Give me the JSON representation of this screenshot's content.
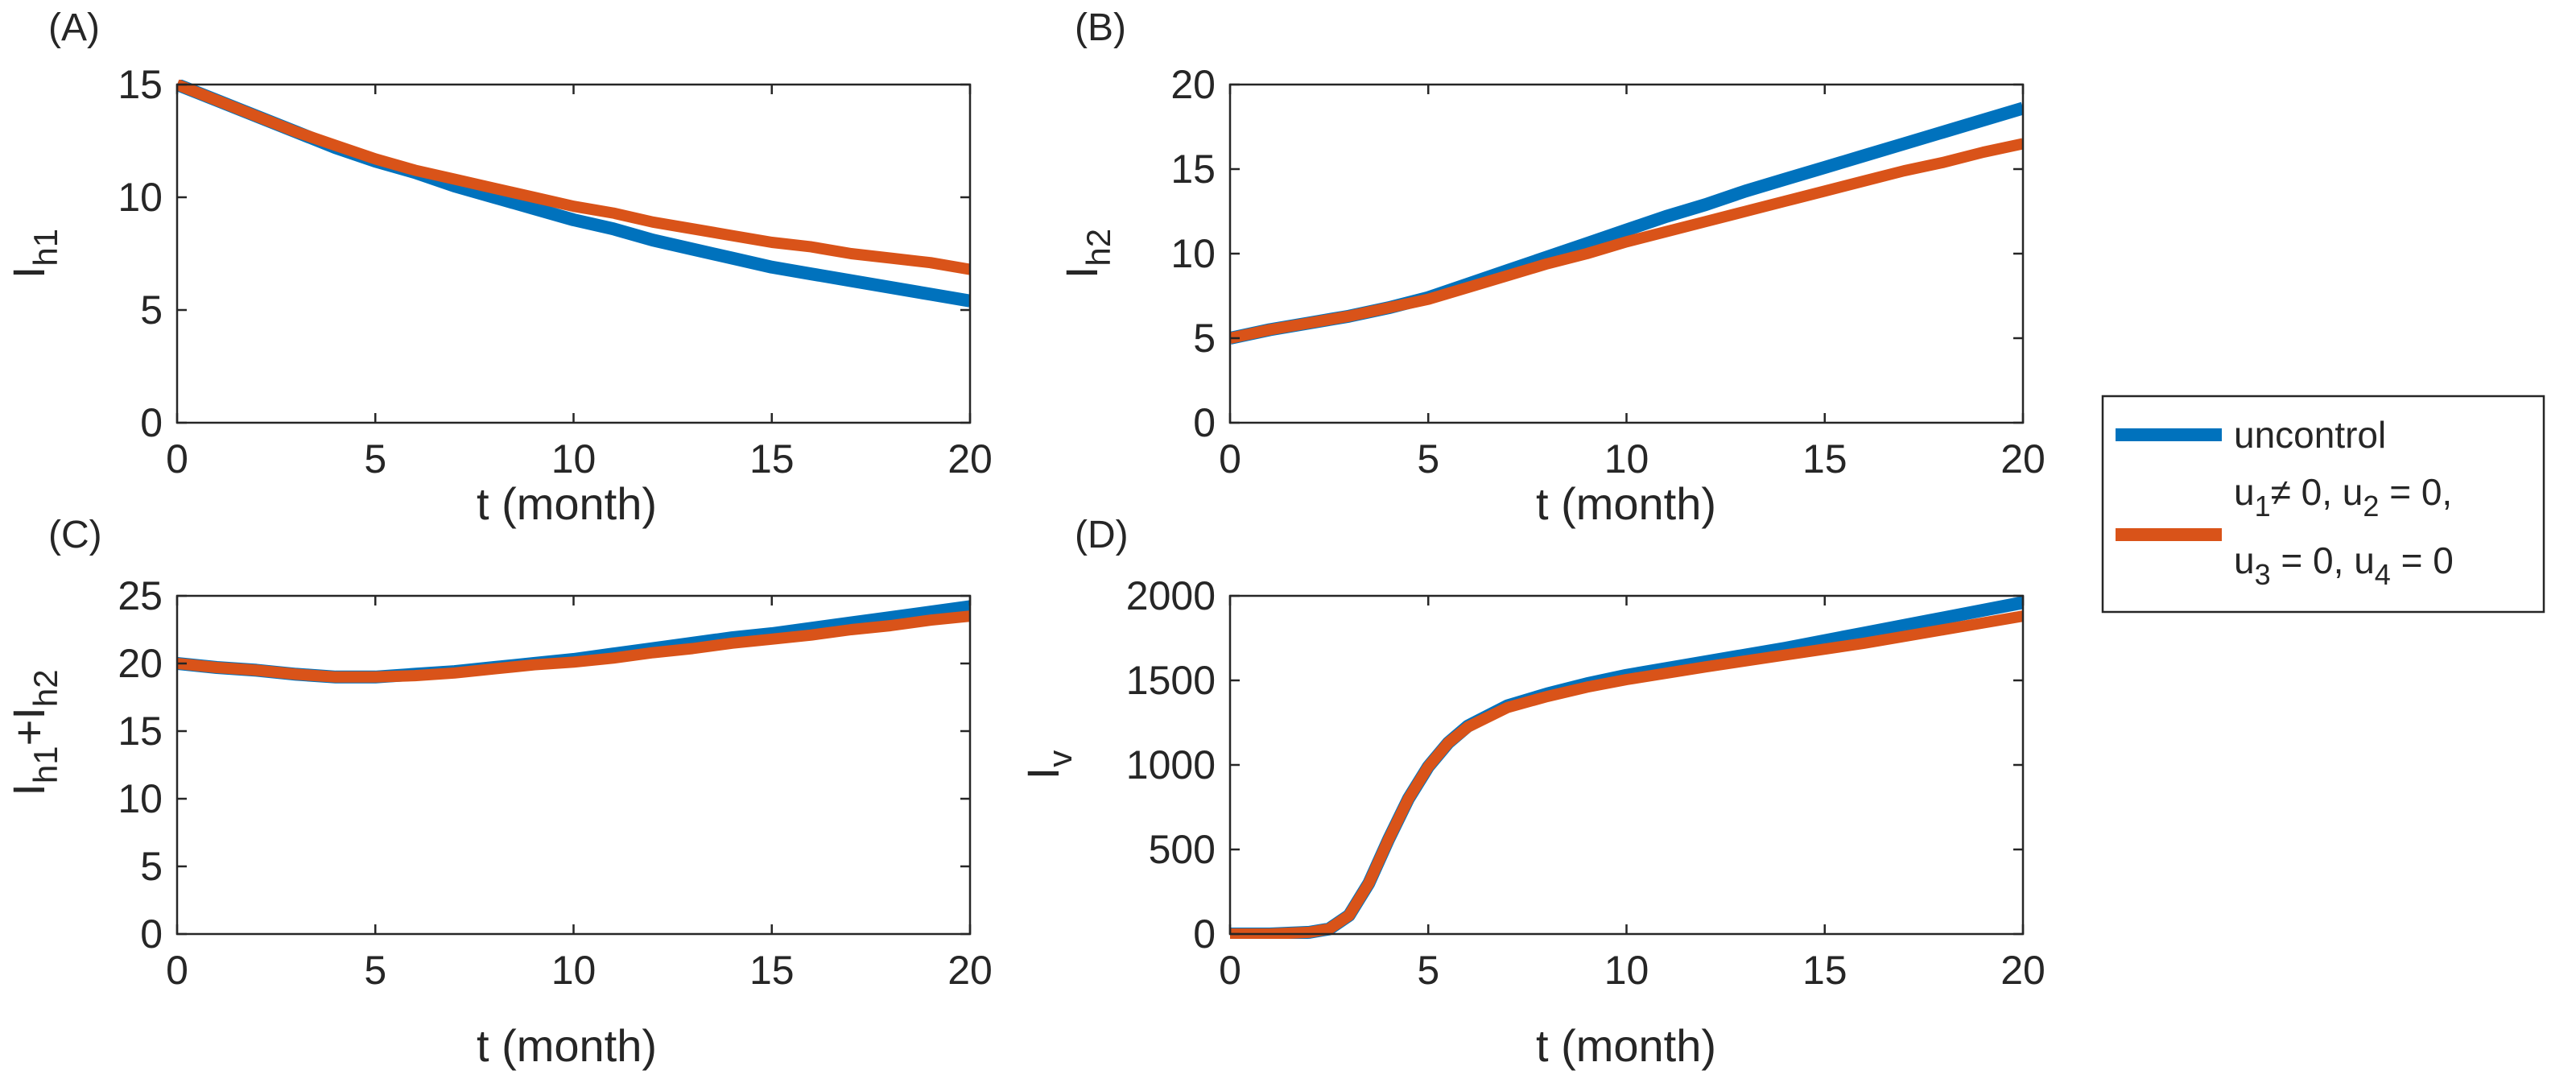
{
  "figure": {
    "legend": {
      "entries": [
        {
          "label": "uncontrol",
          "color": "#0072BD"
        },
        {
          "label": "u1≠ 0, u2 = 0, u3 = 0, u4 = 0",
          "line1": {
            "base1": "u",
            "sub1": "1",
            "rest1": "≠ 0, u",
            "sub2": "2",
            "rest2": " = 0,"
          },
          "line2": {
            "base1": "u",
            "sub1": "3",
            "rest1": " = 0, u",
            "sub2": "4",
            "rest2": " = 0"
          },
          "color": "#D95319"
        }
      ]
    }
  },
  "chart_data": [
    {
      "panel": "(A)",
      "type": "line",
      "xlabel": "t (month)",
      "ylabel": {
        "base": "I",
        "sub": "h1"
      },
      "xlim": [
        0,
        20
      ],
      "ylim": [
        0,
        15
      ],
      "xticks": [
        0,
        5,
        10,
        15,
        20
      ],
      "yticks": [
        0,
        5,
        10,
        15
      ],
      "series": [
        {
          "name": "uncontrol",
          "color": "#0072BD",
          "x": [
            0,
            1,
            2,
            3,
            4,
            5,
            6,
            7,
            8,
            9,
            10,
            11,
            12,
            13,
            14,
            15,
            16,
            17,
            18,
            19,
            20
          ],
          "y": [
            15.0,
            14.3,
            13.6,
            12.9,
            12.2,
            11.6,
            11.1,
            10.5,
            10.0,
            9.5,
            9.0,
            8.6,
            8.1,
            7.7,
            7.3,
            6.9,
            6.6,
            6.3,
            6.0,
            5.7,
            5.4
          ]
        },
        {
          "name": "u1≠ 0, u2 = 0, u3 = 0, u4 = 0",
          "color": "#D95319",
          "x": [
            0,
            1,
            2,
            3,
            4,
            5,
            6,
            7,
            8,
            9,
            10,
            11,
            12,
            13,
            14,
            15,
            16,
            17,
            18,
            19,
            20
          ],
          "y": [
            15.0,
            14.3,
            13.6,
            12.9,
            12.3,
            11.7,
            11.2,
            10.8,
            10.4,
            10.0,
            9.6,
            9.3,
            8.9,
            8.6,
            8.3,
            8.0,
            7.8,
            7.5,
            7.3,
            7.1,
            6.8
          ]
        }
      ]
    },
    {
      "panel": "(B)",
      "type": "line",
      "xlabel": "t (month)",
      "ylabel": {
        "base": "I",
        "sub": "h2"
      },
      "xlim": [
        0,
        20
      ],
      "ylim": [
        0,
        20
      ],
      "xticks": [
        0,
        5,
        10,
        15,
        20
      ],
      "yticks": [
        0,
        5,
        10,
        15,
        20
      ],
      "series": [
        {
          "name": "uncontrol",
          "color": "#0072BD",
          "x": [
            0,
            1,
            2,
            3,
            4,
            5,
            6,
            7,
            8,
            9,
            10,
            11,
            12,
            13,
            14,
            15,
            16,
            17,
            18,
            19,
            20
          ],
          "y": [
            5.0,
            5.5,
            5.9,
            6.3,
            6.8,
            7.4,
            8.2,
            9.0,
            9.8,
            10.6,
            11.4,
            12.2,
            12.9,
            13.7,
            14.4,
            15.1,
            15.8,
            16.5,
            17.2,
            17.9,
            18.6
          ]
        },
        {
          "name": "u1≠ 0, u2 = 0, u3 = 0, u4 = 0",
          "color": "#D95319",
          "x": [
            0,
            1,
            2,
            3,
            4,
            5,
            6,
            7,
            8,
            9,
            10,
            11,
            12,
            13,
            14,
            15,
            16,
            17,
            18,
            19,
            20
          ],
          "y": [
            5.0,
            5.5,
            5.9,
            6.3,
            6.8,
            7.3,
            8.0,
            8.7,
            9.4,
            10.0,
            10.7,
            11.3,
            11.9,
            12.5,
            13.1,
            13.7,
            14.3,
            14.9,
            15.4,
            16.0,
            16.5
          ]
        }
      ]
    },
    {
      "panel": "(C)",
      "type": "line",
      "xlabel": "t (month)",
      "ylabel": {
        "base1": "I",
        "sub1": "h1",
        "plus": "+",
        "base2": "I",
        "sub2": "h2"
      },
      "xlim": [
        0,
        20
      ],
      "ylim": [
        0,
        25
      ],
      "xticks": [
        0,
        5,
        10,
        15,
        20
      ],
      "yticks": [
        0,
        5,
        10,
        15,
        20,
        25
      ],
      "series": [
        {
          "name": "uncontrol",
          "color": "#0072BD",
          "x": [
            0,
            1,
            2,
            3,
            4,
            5,
            6,
            7,
            8,
            9,
            10,
            11,
            12,
            13,
            14,
            15,
            16,
            17,
            18,
            19,
            20
          ],
          "y": [
            20.0,
            19.7,
            19.5,
            19.2,
            19.0,
            19.0,
            19.2,
            19.4,
            19.7,
            20.0,
            20.3,
            20.7,
            21.1,
            21.5,
            21.9,
            22.2,
            22.6,
            23.0,
            23.4,
            23.8,
            24.2
          ]
        },
        {
          "name": "u1≠ 0, u2 = 0, u3 = 0, u4 = 0",
          "color": "#D95319",
          "x": [
            0,
            1,
            2,
            3,
            4,
            5,
            6,
            7,
            8,
            9,
            10,
            11,
            12,
            13,
            14,
            15,
            16,
            17,
            18,
            19,
            20
          ],
          "y": [
            20.0,
            19.7,
            19.5,
            19.2,
            19.0,
            19.0,
            19.1,
            19.3,
            19.6,
            19.9,
            20.1,
            20.4,
            20.8,
            21.1,
            21.5,
            21.8,
            22.1,
            22.5,
            22.8,
            23.2,
            23.5
          ]
        }
      ]
    },
    {
      "panel": "(D)",
      "type": "line",
      "xlabel": "t (month)",
      "ylabel": {
        "base": "I",
        "sub": "v"
      },
      "xlim": [
        0,
        20
      ],
      "ylim": [
        0,
        2000
      ],
      "xticks": [
        0,
        5,
        10,
        15,
        20
      ],
      "yticks": [
        0,
        500,
        1000,
        1500,
        2000
      ],
      "series": [
        {
          "name": "uncontrol",
          "color": "#0072BD",
          "x": [
            0,
            1,
            2,
            2.5,
            3,
            3.5,
            4,
            4.5,
            5,
            5.5,
            6,
            7,
            8,
            9,
            10,
            12,
            14,
            16,
            18,
            20
          ],
          "y": [
            0,
            0,
            10,
            30,
            110,
            300,
            560,
            800,
            990,
            1130,
            1230,
            1350,
            1420,
            1480,
            1530,
            1610,
            1690,
            1780,
            1870,
            1960
          ]
        },
        {
          "name": "u1≠ 0, u2 = 0, u3 = 0, u4 = 0",
          "color": "#D95319",
          "x": [
            0,
            1,
            2,
            2.5,
            3,
            3.5,
            4,
            4.5,
            5,
            5.5,
            6,
            7,
            8,
            9,
            10,
            12,
            14,
            16,
            18,
            20
          ],
          "y": [
            0,
            0,
            10,
            30,
            110,
            300,
            560,
            800,
            990,
            1130,
            1225,
            1340,
            1405,
            1460,
            1505,
            1580,
            1650,
            1720,
            1800,
            1880
          ]
        }
      ]
    }
  ]
}
